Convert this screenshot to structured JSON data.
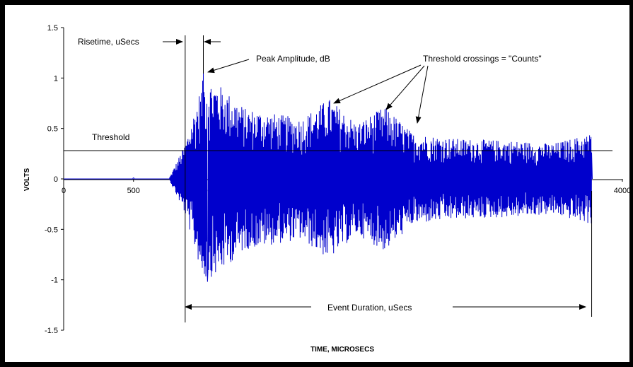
{
  "chart_data": {
    "type": "line",
    "title": "",
    "xlabel": "TIME, MICROSECS",
    "ylabel": "VOLTS",
    "xlim": [
      0,
      4000
    ],
    "ylim": [
      -1.5,
      1.5
    ],
    "x_ticks": [
      "0",
      "500",
      "1000",
      "1500",
      "2000",
      "2500",
      "3000",
      "3500",
      "4000"
    ],
    "y_ticks": [
      "1.5",
      "1",
      "0.5",
      "0",
      "-0.5",
      "-1",
      "-1.5"
    ],
    "grid": false,
    "legend": "none",
    "colors": {
      "series": "#0000cc",
      "axes": "#000000",
      "threshold": "#000000"
    },
    "threshold": {
      "label": "Threshold",
      "value": 0.28
    },
    "signal": {
      "description_free": true,
      "pre_event_baseline": 0,
      "event_start_x": 870,
      "event_end_x": 3780,
      "peak_x": 1000,
      "peak_y": 1.05,
      "min_y": -1.02,
      "envelope": [
        {
          "x": 0,
          "amp": 0
        },
        {
          "x": 760,
          "amp": 0.02
        },
        {
          "x": 870,
          "amp": 0.35
        },
        {
          "x": 1000,
          "amp": 1.0
        },
        {
          "x": 1100,
          "amp": 0.95
        },
        {
          "x": 1300,
          "amp": 0.7
        },
        {
          "x": 1700,
          "amp": 0.6
        },
        {
          "x": 1900,
          "amp": 0.8
        },
        {
          "x": 2100,
          "amp": 0.55
        },
        {
          "x": 2300,
          "amp": 0.72
        },
        {
          "x": 2500,
          "amp": 0.45
        },
        {
          "x": 2800,
          "amp": 0.4
        },
        {
          "x": 3200,
          "amp": 0.38
        },
        {
          "x": 3500,
          "amp": 0.35
        },
        {
          "x": 3780,
          "amp": 0.45
        },
        {
          "x": 3800,
          "amp": 0.0
        }
      ]
    },
    "annotations": {
      "risetime": "Risetime, uSecs",
      "peak_amplitude": "Peak Amplitude, dB",
      "crossings": "Threshold crossings = \"Counts\"",
      "duration": "Event Duration, uSecs"
    }
  }
}
